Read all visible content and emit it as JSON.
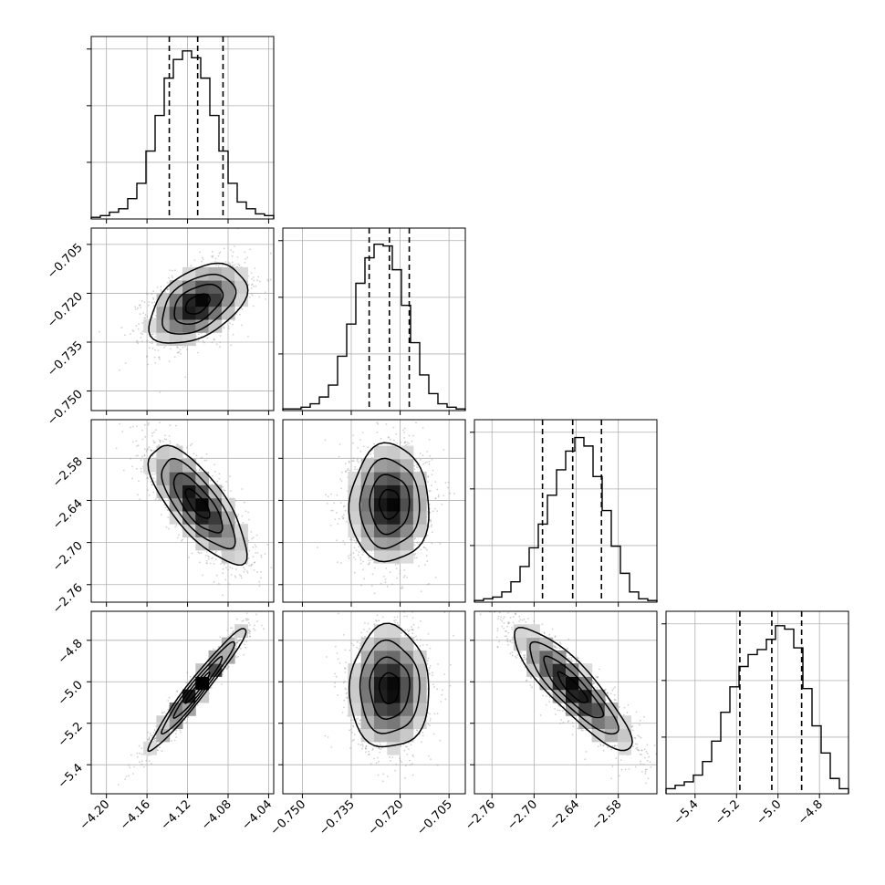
{
  "chart_data": {
    "type": "corner",
    "title": "",
    "parameters": [
      {
        "range": [
          -4.215,
          -4.035
        ],
        "ticks": [
          -4.2,
          -4.16,
          -4.12,
          -4.08,
          -4.04
        ],
        "tick_labels": [
          "−4.20",
          "−4.16",
          "−4.12",
          "−4.08",
          "−4.04"
        ],
        "quantiles": [
          -4.138,
          -4.11,
          -4.085
        ],
        "mean": -4.11,
        "sd": 0.024,
        "hist": [
          0.01,
          0.02,
          0.04,
          0.06,
          0.12,
          0.21,
          0.4,
          0.61,
          0.83,
          0.94,
          0.99,
          0.95,
          0.83,
          0.61,
          0.4,
          0.21,
          0.1,
          0.06,
          0.03,
          0.02
        ]
      },
      {
        "range": [
          -0.756,
          -0.7
        ],
        "ticks": [
          -0.75,
          -0.735,
          -0.72,
          -0.705
        ],
        "tick_labels": [
          "−0.750",
          "−0.735",
          "−0.720",
          "−0.705"
        ],
        "quantiles": [
          -0.7295,
          -0.7233,
          -0.7172
        ],
        "mean": -0.7233,
        "sd": 0.0061,
        "hist": [
          0.01,
          0.01,
          0.02,
          0.04,
          0.08,
          0.15,
          0.32,
          0.51,
          0.75,
          0.9,
          0.98,
          0.97,
          0.83,
          0.62,
          0.4,
          0.21,
          0.1,
          0.04,
          0.02,
          0.01
        ]
      },
      {
        "range": [
          -2.785,
          -2.525
        ],
        "ticks": [
          -2.76,
          -2.7,
          -2.64,
          -2.58
        ],
        "tick_labels": [
          "−2.76",
          "−2.70",
          "−2.64",
          "−2.58"
        ],
        "quantiles": [
          -2.688,
          -2.645,
          -2.604
        ],
        "mean": -2.645,
        "sd": 0.042,
        "hist": [
          0.01,
          0.02,
          0.03,
          0.06,
          0.12,
          0.21,
          0.32,
          0.46,
          0.63,
          0.78,
          0.89,
          0.97,
          0.92,
          0.74,
          0.54,
          0.33,
          0.17,
          0.06,
          0.02,
          0.01
        ]
      },
      {
        "range": [
          -5.54,
          -4.66
        ],
        "ticks": [
          -5.4,
          -5.2,
          -5.0,
          -4.8
        ],
        "tick_labels": [
          "−5.4",
          "−5.2",
          "−5.0",
          "−4.8"
        ],
        "quantiles": [
          -5.184,
          -5.03,
          -4.886
        ],
        "mean": -5.03,
        "sd": 0.148,
        "hist": [
          0.03,
          0.05,
          0.07,
          0.11,
          0.19,
          0.31,
          0.48,
          0.63,
          0.75,
          0.82,
          0.85,
          0.91,
          0.99,
          0.97,
          0.86,
          0.62,
          0.4,
          0.24,
          0.09,
          0.03
        ]
      }
    ],
    "pairs": [
      {
        "row": 1,
        "col": 0,
        "corr": 0.45
      },
      {
        "row": 2,
        "col": 0,
        "corr": -0.75
      },
      {
        "row": 2,
        "col": 1,
        "corr": 0.0
      },
      {
        "row": 3,
        "col": 0,
        "corr": 0.97
      },
      {
        "row": 3,
        "col": 1,
        "corr": 0.0
      },
      {
        "row": 3,
        "col": 2,
        "corr": -0.87
      }
    ],
    "contour_levels_sigma": [
      0.5,
      1.0,
      1.5,
      2.0
    ],
    "grid": true,
    "colors": {
      "line": "#000000",
      "grid": "#b0b0b0",
      "scatter": "#9a9a9a"
    }
  }
}
